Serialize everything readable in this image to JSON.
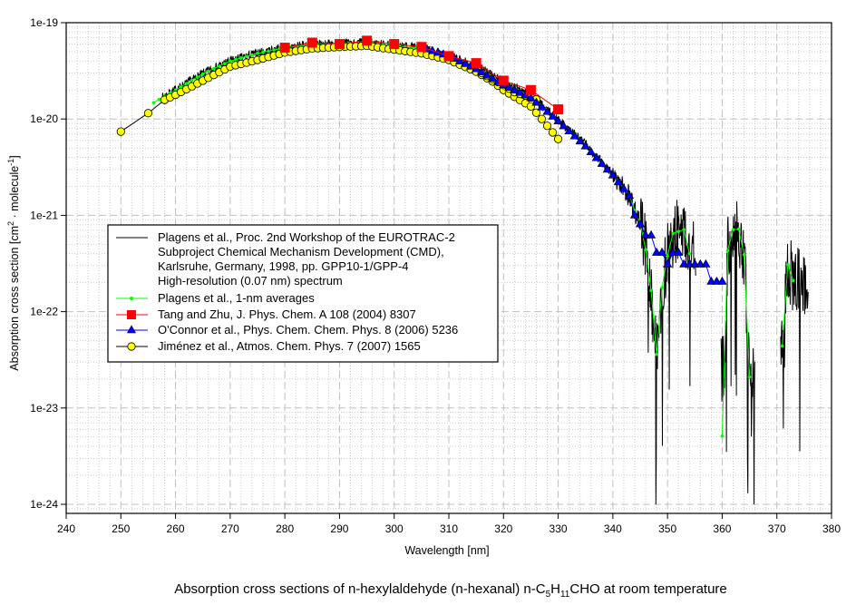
{
  "chart_data": {
    "type": "line",
    "title": {
      "parts": [
        "Absorption cross sections of n-hexylaldehyde (n-hexanal) n-C",
        "5",
        "H",
        "11",
        "CHO at room temperature"
      ]
    },
    "xlabel": "Wavelength [nm]",
    "ylabel": {
      "parts": [
        "Absorption cross section [cm",
        "2",
        " · molecule",
        "-1",
        "]"
      ]
    },
    "xlim": [
      240,
      380
    ],
    "ylim": [
      8e-25,
      1e-19
    ],
    "yscale": "log",
    "grid": true,
    "xticks": [
      240,
      250,
      260,
      270,
      280,
      290,
      300,
      310,
      320,
      330,
      340,
      350,
      360,
      370,
      380
    ],
    "xtick_labels": [
      "240",
      "250",
      "260",
      "270",
      "280",
      "290",
      "300",
      "310",
      "320",
      "330",
      "340",
      "350",
      "360",
      "370",
      "380"
    ],
    "yticks": [
      1e-19,
      1e-20,
      1e-21,
      1e-22,
      1e-23,
      1e-24
    ],
    "ytick_labels": [
      "1e-19",
      "1e-20",
      "1e-21",
      "1e-22",
      "1e-23",
      "1e-24"
    ],
    "legend": {
      "position": "center-left",
      "entries": [
        {
          "lines": [
            "Plagens et al., Proc. 2nd Workshop of the EUROTRAC-2",
            "Subproject Chemical Mechanism Development (CMD),",
            "Karlsruhe, Germany, 1998, pp. GPP10-1/GPP-4",
            "High-resolution (0.07 nm) spectrum"
          ],
          "style": "highres"
        },
        {
          "lines": [
            "Plagens et al., 1-nm averages"
          ],
          "style": "green"
        },
        {
          "lines": [
            "Tang and Zhu, J. Phys. Chem. A 108 (2004) 8307"
          ],
          "style": "red"
        },
        {
          "lines": [
            "O'Connor et al., Phys. Chem. Chem. Phys. 8 (2006) 5236"
          ],
          "style": "blue"
        },
        {
          "lines": [
            "Jiménez et al., Atmos. Chem. Phys. 7 (2007) 1565"
          ],
          "style": "yellow"
        }
      ]
    },
    "series": [
      {
        "name": "Plagens et al. high-resolution (0.07 nm) spectrum",
        "color": "#000000",
        "resolution_nm": 0.07,
        "ranges_nm": [
          [
            257.5,
            355.2
          ],
          [
            359.8,
            366
          ],
          [
            370.7,
            375.8
          ]
        ],
        "envelope": "follows 1-nm averages with strong noise above 345 nm"
      },
      {
        "name": "Plagens et al., 1-nm averages",
        "color": "#00ff00",
        "segments": [
          {
            "step": 1,
            "x": [
              256,
              260,
              265,
              270,
              275,
              280,
              285,
              290,
              295,
              300,
              305,
              310,
              315,
              320,
              325,
              330,
              335,
              340,
              343,
              344,
              345,
              346,
              347,
              348,
              349,
              350,
              351,
              352,
              353,
              354
            ],
            "y": [
              1.48e-20,
              2e-20,
              2.95e-20,
              4e-20,
              4.8e-20,
              5.5e-20,
              5.9e-20,
              6e-20,
              6.2e-20,
              5.75e-20,
              5.4e-20,
              4.5e-20,
              3.55e-20,
              2.4e-20,
              1.74e-20,
              9.8e-21,
              5.5e-21,
              2.7e-21,
              1.6e-21,
              1.12e-21,
              8.3e-22,
              4.4e-22,
              1.66e-22,
              3.6e-23,
              1.78e-22,
              3.8e-22,
              6.5e-22,
              6.8e-22,
              7.1e-22,
              4e-22
            ]
          },
          {
            "step": 1,
            "x": [
              360,
              361,
              362,
              363,
              364,
              365
            ],
            "y": [
              5.1e-24,
              4.3e-22,
              7.1e-22,
              7.2e-22,
              3.9e-22,
              2.1e-23
            ]
          },
          {
            "step": 1,
            "x": [
              371,
              372,
              373
            ],
            "y": [
              4.4e-23,
              3.1e-22,
              2.1e-22
            ]
          }
        ]
      },
      {
        "name": "Jiménez et al., Atmos. Chem. Phys. 7 (2007) 1565",
        "color": "#ffff00",
        "segments": [
          {
            "step": 0,
            "x": [
              250,
              255,
              258
            ],
            "y": [
              7.4e-21,
              1.15e-20,
              1.58e-20
            ]
          },
          {
            "step": 1,
            "x": [
              258,
              260,
              265,
              270,
              275,
              280,
              285,
              290,
              295,
              300,
              305,
              310,
              315,
              318,
              320,
              322,
              325,
              327,
              328,
              330
            ],
            "y": [
              1.58e-20,
              1.78e-20,
              2.5e-20,
              3.5e-20,
              4.1e-20,
              4.9e-20,
              5.4e-20,
              5.6e-20,
              5.75e-20,
              5.25e-20,
              4.8e-20,
              4.1e-20,
              3.1e-20,
              2.45e-20,
              2e-20,
              1.7e-20,
              1.35e-20,
              1e-20,
              8.5e-21,
              6.2e-21
            ]
          },
          {
            "step": 1,
            "x": [
              316,
              318,
              320,
              322,
              324,
              326
            ],
            "y": [
              3e-20,
              2.6e-20,
              2.25e-20,
              1.9e-20,
              1.75e-20,
              1.6e-20
            ]
          }
        ]
      },
      {
        "name": "O'Connor et al., Phys. Chem. Chem. Phys. 8 (2006) 5236",
        "color": "#0000ff",
        "segments": [
          {
            "step": 1,
            "x": [
              306,
              310,
              315,
              320,
              325,
              330,
              335,
              340,
              343,
              344,
              345,
              346,
              347,
              348,
              349,
              350,
              351,
              352,
              353,
              357,
              358,
              360
            ],
            "y": [
              5.3e-20,
              4.5e-20,
              3.3e-20,
              2.25e-20,
              1.65e-20,
              9.5e-21,
              5.2e-21,
              2.6e-21,
              1.6e-21,
              1e-21,
              8.1e-22,
              6.2e-22,
              6.2e-22,
              4.1e-22,
              4.1e-22,
              3.1e-22,
              4.1e-22,
              4.1e-22,
              3.1e-22,
              3.1e-22,
              2.05e-22,
              2.05e-22
            ]
          }
        ]
      },
      {
        "name": "Tang and Zhu, J. Phys. Chem. A 108 (2004) 8307",
        "color": "#ff0000",
        "segments": [
          {
            "step": 0,
            "x": [
              280,
              285,
              290,
              295,
              300,
              305,
              310,
              315,
              320,
              325,
              330
            ],
            "y": [
              5.5e-20,
              6.2e-20,
              6e-20,
              6.5e-20,
              6e-20,
              5.6e-20,
              4.5e-20,
              3.8e-20,
              2.5e-20,
              2e-20,
              1.26e-20
            ]
          }
        ]
      }
    ]
  }
}
